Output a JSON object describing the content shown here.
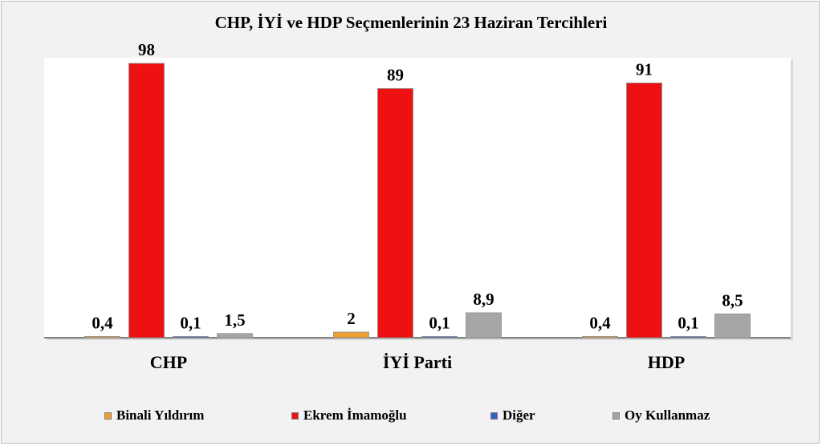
{
  "chart_data": {
    "type": "bar",
    "title": "CHP, İYİ ve HDP Seçmenlerinin 23 Haziran Tercihleri",
    "categories": [
      "CHP",
      "İYİ Parti",
      "HDP"
    ],
    "series": [
      {
        "name": "Binali Yıldırım",
        "color": "#f0a030",
        "values": [
          0.4,
          2,
          0.4
        ],
        "labels": [
          "0,4",
          "2",
          "0,4"
        ]
      },
      {
        "name": "Ekrem İmamoğlu",
        "color": "#ee1111",
        "values": [
          98,
          89,
          91
        ],
        "labels": [
          "98",
          "89",
          "91"
        ]
      },
      {
        "name": "Diğer",
        "color": "#3a62c4",
        "values": [
          0.1,
          0.1,
          0.1
        ],
        "labels": [
          "0,1",
          "0,1",
          "0,1"
        ]
      },
      {
        "name": "Oy Kullanmaz",
        "color": "#a6a6a6",
        "values": [
          1.5,
          8.9,
          8.5
        ],
        "labels": [
          "1,5",
          "8,9",
          "8,5"
        ]
      }
    ],
    "ylim": [
      0,
      100
    ],
    "grid": false,
    "legend_position": "bottom"
  }
}
